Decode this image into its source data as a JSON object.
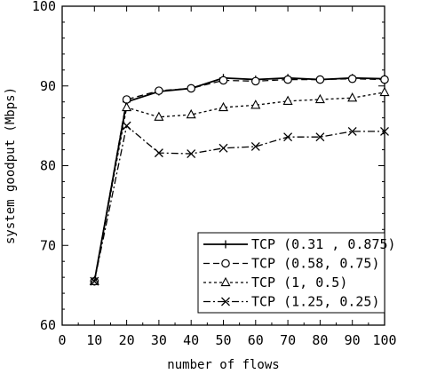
{
  "chart_data": {
    "type": "line",
    "title": "",
    "xlabel": "number of flows",
    "ylabel": "system goodput (Mbps)",
    "xlim": [
      0,
      100
    ],
    "ylim": [
      60,
      100
    ],
    "xticks": [
      0,
      10,
      20,
      30,
      40,
      50,
      60,
      70,
      80,
      90,
      100
    ],
    "yticks": [
      60,
      70,
      80,
      90,
      100
    ],
    "x": [
      10,
      20,
      30,
      40,
      50,
      60,
      70,
      80,
      90,
      100
    ],
    "grid": false,
    "legend_position": "bottom-right",
    "series": [
      {
        "name": "TCP (0.31 , 0.875)",
        "marker": "plus",
        "dash": "solid",
        "values": [
          65.5,
          88.0,
          89.3,
          89.7,
          91.0,
          90.8,
          91.0,
          90.8,
          91.0,
          90.9
        ]
      },
      {
        "name": "TCP (0.58, 0.75)",
        "marker": "circle",
        "dash": "dashed",
        "values": [
          65.5,
          88.3,
          89.4,
          89.7,
          90.7,
          90.6,
          90.8,
          90.8,
          90.9,
          90.8
        ]
      },
      {
        "name": "TCP (1, 0.5)",
        "marker": "triangle",
        "dash": "dotted",
        "values": [
          65.5,
          87.3,
          86.1,
          86.4,
          87.3,
          87.6,
          88.1,
          88.3,
          88.5,
          89.2
        ]
      },
      {
        "name": "TCP (1.25, 0.25)",
        "marker": "x",
        "dash": "dashdot",
        "values": [
          65.5,
          85.0,
          81.6,
          81.5,
          82.2,
          82.4,
          83.6,
          83.6,
          84.3,
          84.3
        ]
      }
    ]
  }
}
